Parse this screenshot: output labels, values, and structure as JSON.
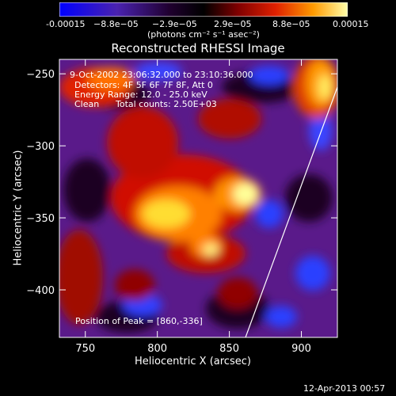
{
  "colorbar": {
    "tick_labels": [
      "-0.00015",
      "−8.8e−05",
      "−2.9e−05",
      "2.9e−05",
      "8.8e−05",
      "0.00015"
    ],
    "unit_label": "(photons cm⁻² s⁻¹ asec⁻²)",
    "colors": [
      "#0000ff",
      "#5a1aa8",
      "#2a0030",
      "#000000",
      "#7a0000",
      "#e02000",
      "#ff8a00",
      "#ffff99"
    ]
  },
  "chart_data": {
    "type": "heatmap",
    "title": "Reconstructed RHESSI Image",
    "xlabel": "Heliocentric X (arcsec)",
    "ylabel": "Heliocentric Y (arcsec)",
    "xlim": [
      732,
      925
    ],
    "ylim": [
      -433,
      -240
    ],
    "xticks": [
      750,
      800,
      850,
      900
    ],
    "yticks": [
      -250,
      -300,
      -350,
      -400
    ],
    "ytick_labels": [
      "−250",
      "−300",
      "−350",
      "−400"
    ],
    "value_range": [
      -0.00015,
      0.00015
    ],
    "peak": [
      860,
      -336
    ],
    "annotations": {
      "time": "9-Oct-2002 23:06:32.000 to 23:10:36.000",
      "detectors": "Detectors: 4F 5F 6F 7F 8F, Att 0",
      "energy": "Energy Range: 12.0 - 25.0 keV",
      "method": "Clean",
      "counts": "Total counts: 2.50E+03",
      "peak_text": "Position of Peak = [860,-336]"
    }
  },
  "footer": {
    "timestamp": "12-Apr-2013 00:57"
  }
}
